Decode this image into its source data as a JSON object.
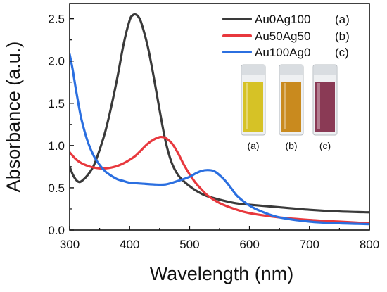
{
  "chart_data": {
    "type": "line",
    "xlabel": "Wavelength (nm)",
    "ylabel": "Absorbance (a.u.)",
    "xlim": [
      300,
      800
    ],
    "ylim": [
      0.0,
      2.6
    ],
    "x_ticks": [
      "300",
      "400",
      "500",
      "600",
      "700",
      "800"
    ],
    "y_ticks": [
      "0.0",
      "0.5",
      "1.0",
      "1.5",
      "2.0",
      "2.5"
    ],
    "grid": false,
    "legend_position": "top-right",
    "series": [
      {
        "name": "Au0Ag100",
        "tag": "(a)",
        "color": "#3a3a3a",
        "points": [
          [
            300,
            0.75
          ],
          [
            305,
            0.66
          ],
          [
            310,
            0.6
          ],
          [
            315,
            0.57
          ],
          [
            320,
            0.58
          ],
          [
            330,
            0.65
          ],
          [
            340,
            0.76
          ],
          [
            350,
            0.95
          ],
          [
            360,
            1.18
          ],
          [
            370,
            1.48
          ],
          [
            380,
            1.82
          ],
          [
            390,
            2.2
          ],
          [
            400,
            2.48
          ],
          [
            405,
            2.54
          ],
          [
            410,
            2.55
          ],
          [
            415,
            2.52
          ],
          [
            420,
            2.44
          ],
          [
            430,
            2.18
          ],
          [
            440,
            1.82
          ],
          [
            450,
            1.42
          ],
          [
            460,
            1.05
          ],
          [
            470,
            0.8
          ],
          [
            480,
            0.66
          ],
          [
            490,
            0.58
          ],
          [
            500,
            0.52
          ],
          [
            510,
            0.47
          ],
          [
            520,
            0.43
          ],
          [
            530,
            0.4
          ],
          [
            550,
            0.36
          ],
          [
            575,
            0.32
          ],
          [
            600,
            0.3
          ],
          [
            650,
            0.27
          ],
          [
            700,
            0.24
          ],
          [
            750,
            0.22
          ],
          [
            800,
            0.21
          ]
        ]
      },
      {
        "name": "Au50Ag50",
        "tag": "(b)",
        "color": "#e8383d",
        "points": [
          [
            300,
            0.92
          ],
          [
            310,
            0.84
          ],
          [
            320,
            0.79
          ],
          [
            330,
            0.76
          ],
          [
            340,
            0.74
          ],
          [
            350,
            0.73
          ],
          [
            360,
            0.73
          ],
          [
            370,
            0.74
          ],
          [
            380,
            0.76
          ],
          [
            390,
            0.79
          ],
          [
            400,
            0.83
          ],
          [
            410,
            0.88
          ],
          [
            420,
            0.95
          ],
          [
            430,
            1.02
          ],
          [
            440,
            1.07
          ],
          [
            450,
            1.1
          ],
          [
            455,
            1.1
          ],
          [
            460,
            1.09
          ],
          [
            470,
            1.03
          ],
          [
            480,
            0.92
          ],
          [
            490,
            0.78
          ],
          [
            500,
            0.66
          ],
          [
            510,
            0.56
          ],
          [
            520,
            0.48
          ],
          [
            530,
            0.41
          ],
          [
            550,
            0.32
          ],
          [
            575,
            0.25
          ],
          [
            600,
            0.2
          ],
          [
            650,
            0.15
          ],
          [
            700,
            0.12
          ],
          [
            750,
            0.1
          ],
          [
            800,
            0.08
          ]
        ]
      },
      {
        "name": "Au100Ag0",
        "tag": "(c)",
        "color": "#2b6fe0",
        "points": [
          [
            300,
            2.08
          ],
          [
            305,
            1.9
          ],
          [
            310,
            1.68
          ],
          [
            315,
            1.48
          ],
          [
            320,
            1.3
          ],
          [
            330,
            1.05
          ],
          [
            340,
            0.88
          ],
          [
            350,
            0.77
          ],
          [
            360,
            0.69
          ],
          [
            370,
            0.64
          ],
          [
            380,
            0.6
          ],
          [
            390,
            0.58
          ],
          [
            400,
            0.56
          ],
          [
            420,
            0.55
          ],
          [
            440,
            0.54
          ],
          [
            460,
            0.54
          ],
          [
            480,
            0.58
          ],
          [
            500,
            0.63
          ],
          [
            510,
            0.67
          ],
          [
            520,
            0.7
          ],
          [
            530,
            0.71
          ],
          [
            540,
            0.7
          ],
          [
            550,
            0.65
          ],
          [
            560,
            0.58
          ],
          [
            570,
            0.49
          ],
          [
            580,
            0.4
          ],
          [
            600,
            0.29
          ],
          [
            620,
            0.22
          ],
          [
            650,
            0.15
          ],
          [
            700,
            0.1
          ],
          [
            750,
            0.08
          ],
          [
            800,
            0.07
          ]
        ]
      }
    ]
  },
  "inset": {
    "vials": [
      {
        "label": "(a)",
        "liquid_color": "#d6c226"
      },
      {
        "label": "(b)",
        "liquid_color": "#c98a1e"
      },
      {
        "label": "(c)",
        "liquid_color": "#8a3a55"
      }
    ]
  }
}
